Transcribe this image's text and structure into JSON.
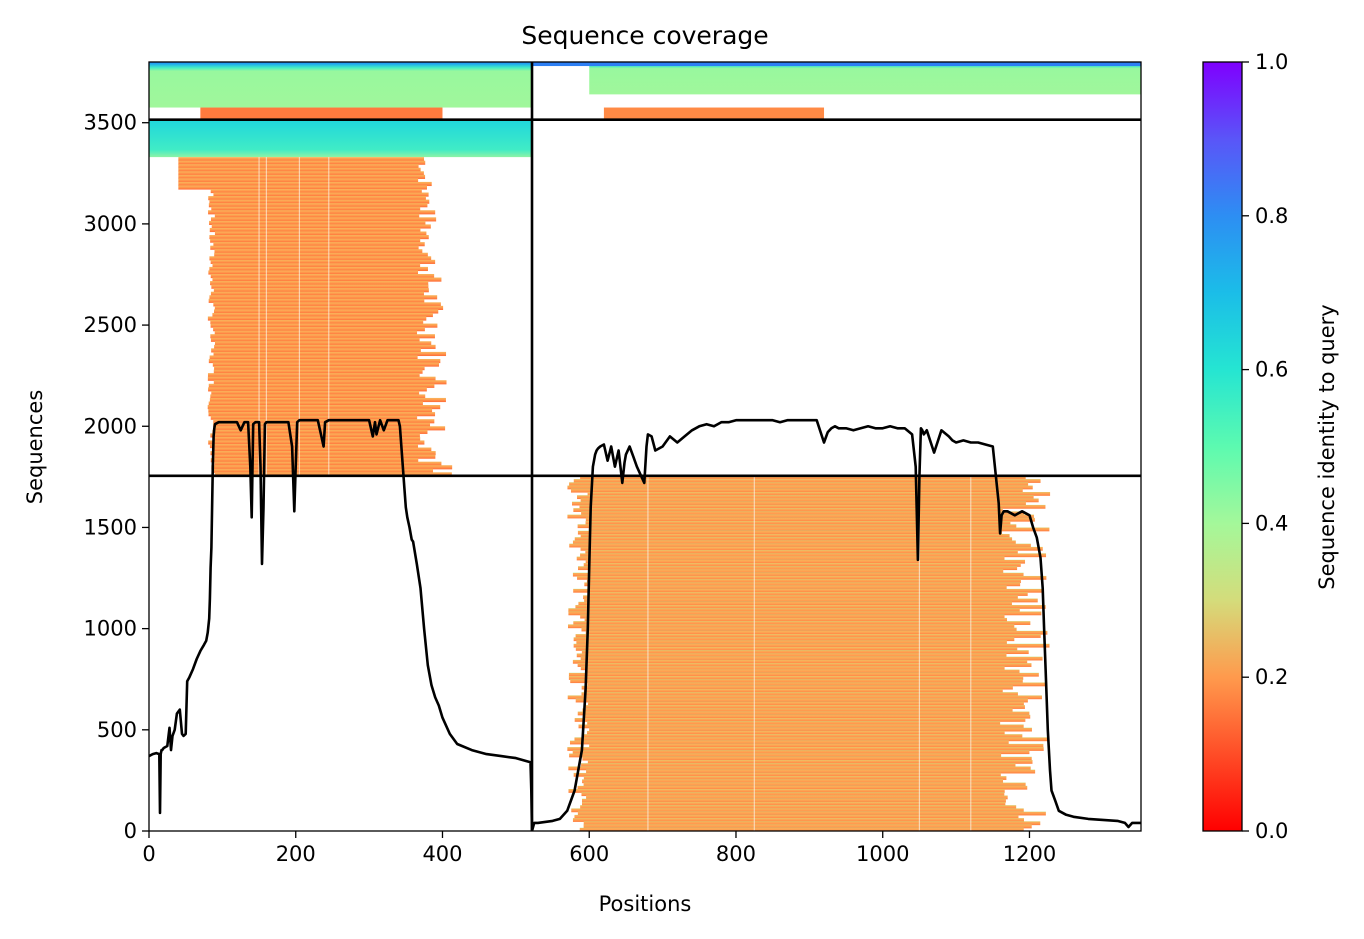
{
  "chart_data": {
    "type": "heatmap",
    "title": "Sequence coverage",
    "xlabel": "Positions",
    "ylabel": "Sequences",
    "xlim": [
      0,
      1352
    ],
    "ylim": [
      0,
      3800
    ],
    "xticks": [
      0,
      200,
      400,
      600,
      800,
      1000,
      1200
    ],
    "yticks": [
      0,
      500,
      1000,
      1500,
      2000,
      2500,
      3000,
      3500
    ],
    "colorbar": {
      "label": "Sequence identity to query",
      "range": [
        0,
        1
      ],
      "ticks": [
        "0.0",
        "0.2",
        "0.4",
        "0.6",
        "0.8",
        "1.0"
      ],
      "colormap": "rainbow_r"
    },
    "chain_boundary_x": 522,
    "chain_boundary_y": [
      1755,
      3515
    ],
    "blocks": [
      {
        "x0": 40,
        "x1": 400,
        "y0": 1755,
        "y1": 3330,
        "identity_bottom": 0.18,
        "identity_top": 0.28,
        "note": "chain A alignments"
      },
      {
        "x0": 0,
        "x1": 522,
        "y0": 3330,
        "y1": 3515,
        "identity_bottom": 0.55,
        "identity_top": 0.68
      },
      {
        "x0": 0,
        "x1": 522,
        "y0": 3575,
        "y1": 3800,
        "identity_bottom": 0.45,
        "identity_top": 0.8
      },
      {
        "x0": 522,
        "x1": 1352,
        "y0": 3575,
        "y1": 3800,
        "identity_bottom": 0.45,
        "identity_top": 0.8
      },
      {
        "x0": 600,
        "x1": 1220,
        "y0": 0,
        "y1": 1755,
        "identity_bottom": 0.2,
        "identity_top": 0.3,
        "note": "chain B alignments"
      }
    ],
    "coverage_line": {
      "x": [
        0,
        5,
        10,
        14,
        15,
        16,
        17,
        18,
        20,
        25,
        28,
        30,
        32,
        35,
        38,
        40,
        42,
        45,
        47,
        50,
        52,
        55,
        60,
        65,
        70,
        75,
        78,
        80,
        82,
        83,
        84,
        85,
        86,
        87,
        88,
        89,
        90,
        95,
        100,
        110,
        120,
        125,
        130,
        135,
        138,
        140,
        142,
        145,
        150,
        152,
        154,
        156,
        158,
        160,
        170,
        180,
        190,
        195,
        198,
        200,
        202,
        205,
        210,
        220,
        230,
        235,
        238,
        240,
        245,
        250,
        260,
        270,
        280,
        290,
        300,
        305,
        308,
        310,
        315,
        320,
        325,
        330,
        335,
        340,
        342,
        345,
        348,
        350,
        352,
        355,
        358,
        360,
        365,
        370,
        375,
        380,
        385,
        390,
        395,
        400,
        410,
        420,
        440,
        460,
        480,
        500,
        515,
        520,
        521,
        522,
        525,
        530,
        540,
        550,
        560,
        570,
        580,
        590,
        595,
        598,
        600,
        602,
        605,
        608,
        610,
        612,
        615,
        620,
        625,
        630,
        635,
        640,
        645,
        648,
        650,
        655,
        660,
        665,
        670,
        675,
        678,
        680,
        685,
        690,
        700,
        710,
        720,
        730,
        740,
        750,
        760,
        770,
        780,
        790,
        800,
        810,
        820,
        830,
        840,
        850,
        860,
        870,
        880,
        890,
        900,
        910,
        920,
        925,
        930,
        935,
        940,
        950,
        960,
        970,
        980,
        990,
        1000,
        1010,
        1020,
        1030,
        1040,
        1045,
        1048,
        1050,
        1052,
        1054,
        1056,
        1060,
        1070,
        1080,
        1090,
        1095,
        1100,
        1110,
        1120,
        1130,
        1140,
        1150,
        1158,
        1160,
        1162,
        1165,
        1170,
        1180,
        1190,
        1200,
        1205,
        1210,
        1215,
        1218,
        1220,
        1222,
        1225,
        1228,
        1230,
        1235,
        1240,
        1250,
        1260,
        1280,
        1300,
        1320,
        1330,
        1335,
        1340,
        1345,
        1352
      ],
      "y": [
        370,
        380,
        385,
        380,
        90,
        380,
        400,
        400,
        410,
        420,
        510,
        400,
        470,
        500,
        580,
        590,
        600,
        480,
        470,
        480,
        740,
        760,
        800,
        850,
        890,
        920,
        940,
        980,
        1050,
        1150,
        1300,
        1400,
        1600,
        1800,
        1950,
        1990,
        2010,
        2020,
        2020,
        2020,
        2020,
        1980,
        2020,
        2020,
        1800,
        1550,
        2010,
        2020,
        2020,
        1800,
        1320,
        1600,
        2010,
        2020,
        2020,
        2020,
        2020,
        1900,
        1580,
        1800,
        2020,
        2030,
        2030,
        2030,
        2030,
        1950,
        1900,
        2020,
        2030,
        2030,
        2030,
        2030,
        2030,
        2030,
        2030,
        1950,
        2020,
        1960,
        2030,
        1980,
        2030,
        2030,
        2030,
        2030,
        2000,
        1850,
        1700,
        1600,
        1550,
        1500,
        1440,
        1430,
        1320,
        1200,
        1000,
        820,
        720,
        660,
        620,
        560,
        480,
        430,
        400,
        380,
        370,
        360,
        345,
        340,
        200,
        0,
        40,
        40,
        45,
        50,
        60,
        100,
        200,
        400,
        700,
        1000,
        1300,
        1600,
        1800,
        1860,
        1880,
        1890,
        1900,
        1910,
        1830,
        1900,
        1800,
        1880,
        1720,
        1820,
        1860,
        1900,
        1850,
        1800,
        1760,
        1720,
        1900,
        1960,
        1950,
        1880,
        1900,
        1950,
        1920,
        1950,
        1980,
        2000,
        2010,
        2000,
        2020,
        2020,
        2030,
        2030,
        2030,
        2030,
        2030,
        2030,
        2020,
        2030,
        2030,
        2030,
        2030,
        2030,
        1920,
        1970,
        1990,
        2000,
        1990,
        1990,
        1980,
        1990,
        2000,
        1990,
        1990,
        2000,
        1990,
        1990,
        1960,
        1800,
        1340,
        1750,
        1990,
        1980,
        1960,
        1980,
        1870,
        1980,
        1950,
        1930,
        1920,
        1930,
        1920,
        1920,
        1910,
        1900,
        1620,
        1470,
        1560,
        1580,
        1580,
        1560,
        1580,
        1560,
        1500,
        1450,
        1350,
        1200,
        1000,
        800,
        500,
        300,
        200,
        150,
        100,
        80,
        70,
        60,
        55,
        50,
        40,
        20,
        40,
        40,
        40
      ]
    }
  }
}
